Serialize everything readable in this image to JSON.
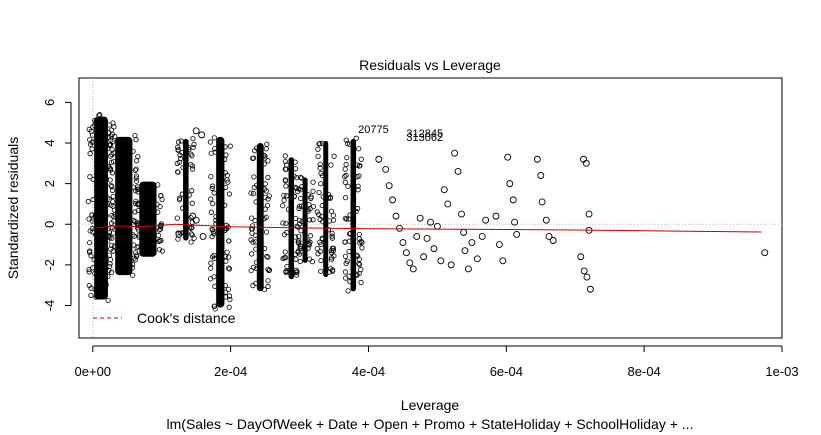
{
  "chart_data": {
    "type": "scatter",
    "title": "Residuals vs Leverage",
    "xlabel": "Leverage",
    "ylabel": "Standardized residuals",
    "subtitle": "lm(Sales ~ DayOfWeek + Date + Open + Promo + StateHoliday + SchoolHoliday + ...",
    "xlim": [
      -2e-05,
      0.001
    ],
    "ylim": [
      -5.6,
      7.2
    ],
    "x_ticks": [
      0,
      0.0002,
      0.0004,
      0.0006,
      0.0008,
      0.001
    ],
    "x_tick_labels": [
      "0e+00",
      "2e-04",
      "4e-04",
      "6e-04",
      "8e-04",
      "1e-03"
    ],
    "y_ticks": [
      -4,
      -2,
      0,
      2,
      4,
      6
    ],
    "y_tick_labels": [
      "-4",
      "-2",
      "0",
      "2",
      "4",
      "6"
    ],
    "reference_lines": {
      "horizontal": 0,
      "vertical": 0
    },
    "legend": {
      "position": "bottom-left",
      "entries": [
        {
          "label": "Cook's distance",
          "color": "#cc0000",
          "style": "dashed"
        }
      ]
    },
    "annotations": [
      {
        "label": "20775",
        "x": 0.000385,
        "y": 4.5
      },
      {
        "label": "312845",
        "x": 0.000455,
        "y": 4.3
      },
      {
        "label": "313062",
        "x": 0.000455,
        "y": 4.1
      }
    ],
    "clusters": [
      {
        "x": 1.2e-05,
        "width": 2e-05,
        "ymin": -3.8,
        "ymax": 5.4
      },
      {
        "x": 4.5e-05,
        "width": 2.5e-05,
        "ymin": -2.6,
        "ymax": 4.4
      },
      {
        "x": 8e-05,
        "width": 2.5e-05,
        "ymin": -1.7,
        "ymax": 2.2
      },
      {
        "x": 0.000135,
        "width": 8e-06,
        "ymin": -0.9,
        "ymax": 4.3
      },
      {
        "x": 0.000185,
        "width": 1.2e-05,
        "ymin": -4.2,
        "ymax": 4.4
      },
      {
        "x": 0.000243,
        "width": 1e-05,
        "ymin": -3.4,
        "ymax": 4.1
      },
      {
        "x": 0.000288,
        "width": 8e-06,
        "ymin": -2.8,
        "ymax": 3.4
      },
      {
        "x": 0.000308,
        "width": 6e-06,
        "ymin": -2.0,
        "ymax": 2.4
      },
      {
        "x": 0.000338,
        "width": 6e-06,
        "ymin": -2.7,
        "ymax": 4.2
      },
      {
        "x": 0.000378,
        "width": 8e-06,
        "ymin": -3.4,
        "ymax": 4.3
      }
    ],
    "sparse_points": [
      [
        0.00015,
        4.6
      ],
      [
        0.000158,
        4.4
      ],
      [
        0.000145,
        0.4
      ],
      [
        0.00015,
        0.2
      ],
      [
        0.000125,
        -0.5
      ],
      [
        0.00016,
        -0.6
      ],
      [
        0.000415,
        3.2
      ],
      [
        0.000425,
        2.7
      ],
      [
        0.00043,
        1.9
      ],
      [
        0.000435,
        1.2
      ],
      [
        0.00044,
        0.4
      ],
      [
        0.000445,
        -0.2
      ],
      [
        0.00045,
        -0.9
      ],
      [
        0.000455,
        -1.4
      ],
      [
        0.00046,
        -1.9
      ],
      [
        0.000465,
        -2.2
      ],
      [
        0.00047,
        -0.6
      ],
      [
        0.000475,
        0.3
      ],
      [
        0.00048,
        -1.6
      ],
      [
        0.000485,
        -0.7
      ],
      [
        0.00049,
        0.1
      ],
      [
        0.000495,
        -1.2
      ],
      [
        0.0005,
        -0.1
      ],
      [
        0.000505,
        -1.8
      ],
      [
        0.00051,
        1.7
      ],
      [
        0.000515,
        1.0
      ],
      [
        0.00052,
        -2.0
      ],
      [
        0.000525,
        3.5
      ],
      [
        0.00053,
        2.6
      ],
      [
        0.000535,
        0.5
      ],
      [
        0.000538,
        -0.4
      ],
      [
        0.00054,
        -1.3
      ],
      [
        0.000545,
        -2.2
      ],
      [
        0.00055,
        -0.9
      ],
      [
        0.000558,
        -1.7
      ],
      [
        0.000565,
        -0.6
      ],
      [
        0.00057,
        0.2
      ],
      [
        0.000585,
        0.4
      ],
      [
        0.00059,
        -1.0
      ],
      [
        0.000595,
        -1.8
      ],
      [
        0.000602,
        3.3
      ],
      [
        0.000605,
        2.0
      ],
      [
        0.00061,
        1.2
      ],
      [
        0.000612,
        0.1
      ],
      [
        0.000615,
        -0.5
      ],
      [
        0.000645,
        3.2
      ],
      [
        0.00065,
        2.4
      ],
      [
        0.000652,
        1.1
      ],
      [
        0.000658,
        0.2
      ],
      [
        0.000662,
        -0.6
      ],
      [
        0.000668,
        -0.8
      ],
      [
        0.000712,
        3.2
      ],
      [
        0.000716,
        3.0
      ],
      [
        0.00072,
        0.5
      ],
      [
        0.000708,
        -1.6
      ],
      [
        0.000713,
        -2.3
      ],
      [
        0.000717,
        -2.6
      ],
      [
        0.000722,
        -3.2
      ],
      [
        0.00072,
        -0.3
      ],
      [
        0.000975,
        -1.4
      ]
    ],
    "red_line": [
      [
        0.0,
        -0.2
      ],
      [
        3e-05,
        -0.08
      ],
      [
        7e-05,
        -0.12
      ],
      [
        0.00012,
        0.0
      ],
      [
        0.0002,
        -0.12
      ],
      [
        0.0003,
        -0.18
      ],
      [
        0.0004,
        -0.22
      ],
      [
        0.0005,
        -0.24
      ],
      [
        0.0006,
        -0.26
      ],
      [
        0.0007,
        -0.28
      ],
      [
        0.0008,
        -0.32
      ],
      [
        0.0009,
        -0.36
      ],
      [
        0.00097,
        -0.38
      ]
    ]
  }
}
